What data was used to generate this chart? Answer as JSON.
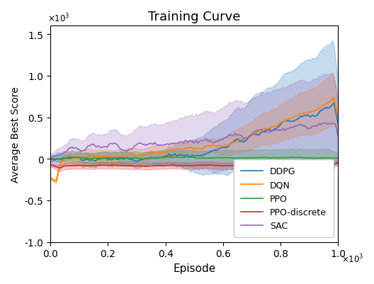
{
  "title": "Training Curve",
  "xlabel": "Episode",
  "ylabel": "Average Best Score",
  "xlim": [
    0,
    1000
  ],
  "ylim": [
    -1000,
    1600
  ],
  "colors": {
    "DDPG": "#1f77b4",
    "DQN": "#ff7f0e",
    "PPO": "#2ca02c",
    "PPO-discrete": "#d62728",
    "SAC": "#9467bd"
  },
  "alpha_fill": 0.25,
  "seed": 0
}
